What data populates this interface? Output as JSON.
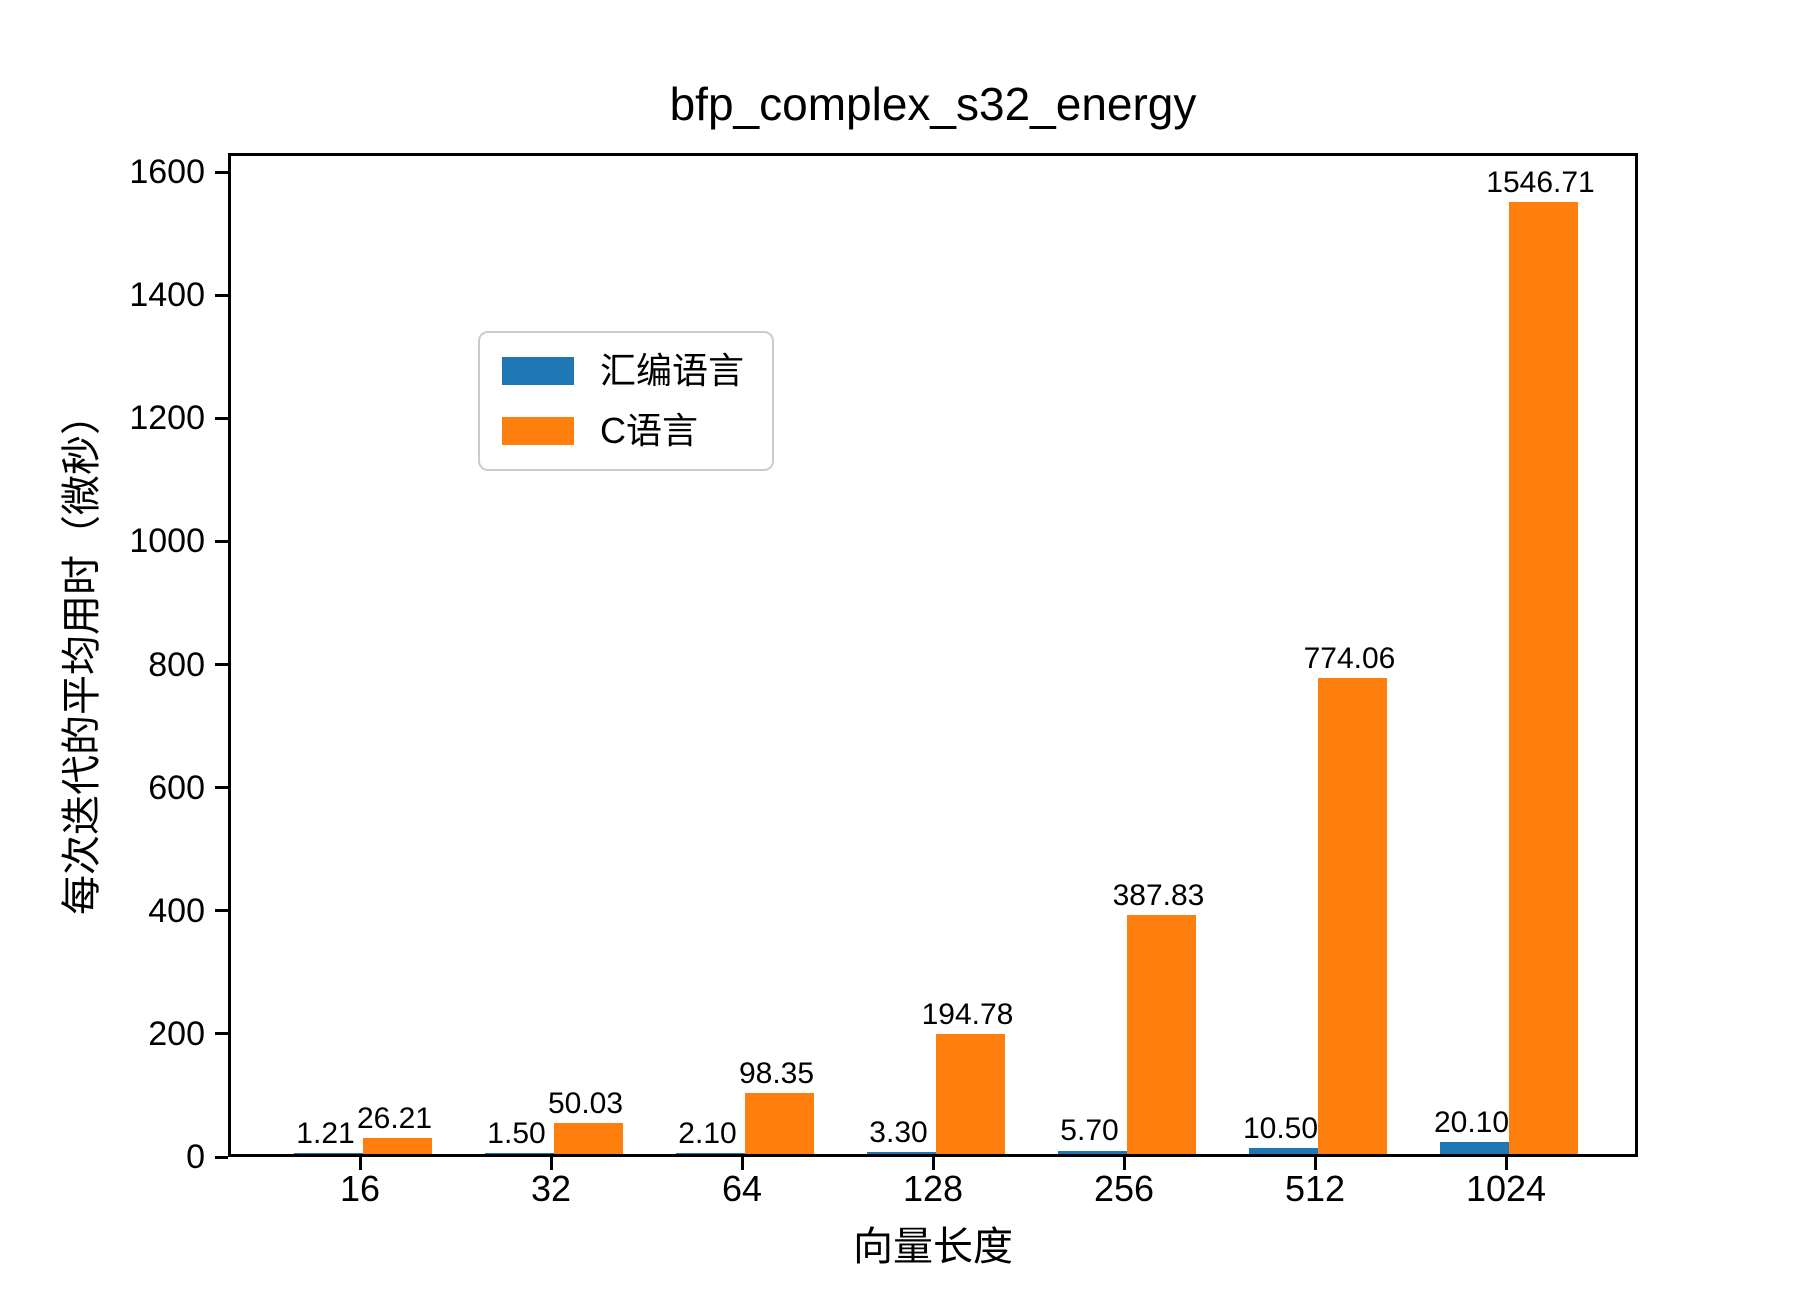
{
  "figure": {
    "title": "bfp_complex_s32_energy"
  },
  "chart_data": {
    "type": "bar",
    "title": "bfp_complex_s32_energy",
    "xlabel": "向量长度",
    "ylabel": "每次迭代的平均用时（微秒）",
    "categories": [
      "16",
      "32",
      "64",
      "128",
      "256",
      "512",
      "1024"
    ],
    "series": [
      {
        "name": "汇编语言",
        "color": "#1f77b4",
        "values": [
          1.21,
          1.5,
          2.1,
          3.3,
          5.7,
          10.5,
          20.1
        ]
      },
      {
        "name": "C语言",
        "color": "#ff7f0e",
        "values": [
          26.21,
          50.03,
          98.35,
          194.78,
          387.83,
          774.06,
          1546.71
        ]
      }
    ],
    "value_labels": [
      [
        "1.21",
        "1.50",
        "2.10",
        "3.30",
        "5.70",
        "10.50",
        "20.10"
      ],
      [
        "26.21",
        "50.03",
        "98.35",
        "194.78",
        "387.83",
        "774.06",
        "1546.71"
      ]
    ],
    "yticks": [
      0,
      200,
      400,
      600,
      800,
      1000,
      1200,
      1400,
      1600
    ],
    "ylim": [
      0,
      1631
    ],
    "grid": false,
    "legend_position": "upper left",
    "legend_labels": [
      "汇编语言",
      "C语言"
    ],
    "axis_color": "#000000",
    "background_color": "#ffffff",
    "legend_border_color": "#cccccc"
  }
}
